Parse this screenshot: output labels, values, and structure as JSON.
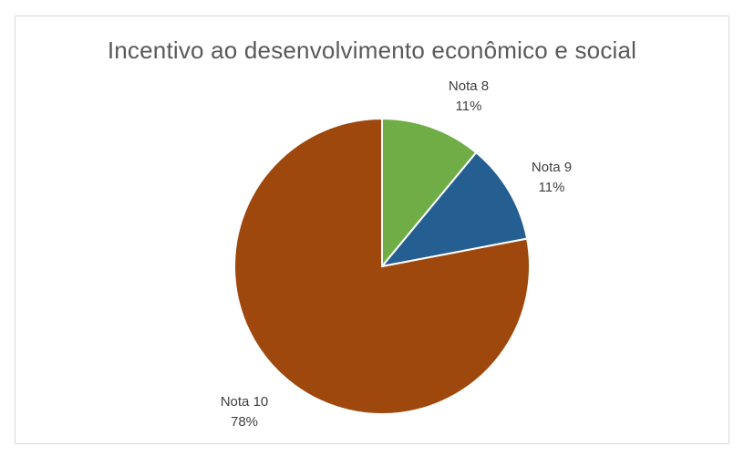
{
  "chart_data": {
    "type": "pie",
    "title": "Incentivo ao desenvolvimento econômico e social",
    "slices": [
      {
        "name": "Nota 8",
        "value": 11,
        "label": "11%",
        "color": "#70ad47"
      },
      {
        "name": "Nota 9",
        "value": 11,
        "label": "11%",
        "color": "#255e91"
      },
      {
        "name": "Nota 10",
        "value": 78,
        "label": "78%",
        "color": "#9e480e"
      }
    ],
    "legend": "none",
    "start_angle": "12 o'clock, clockwise"
  }
}
